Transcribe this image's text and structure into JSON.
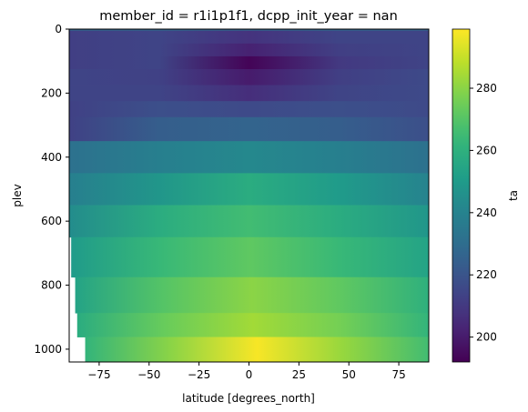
{
  "chart_data": {
    "type": "heatmap",
    "title": "member_id = r1i1p1f1, dcpp_init_year = nan",
    "xlabel": "latitude [degrees_north]",
    "ylabel": "plev",
    "colorbar_label": "ta",
    "colormap": "viridis",
    "xlim": [
      -90,
      90
    ],
    "ylim": [
      1040,
      0
    ],
    "clim": [
      192,
      299
    ],
    "x_ticks": [
      -75,
      -50,
      -25,
      0,
      25,
      50,
      75
    ],
    "x_tick_labels": [
      "−75",
      "−50",
      "−25",
      "0",
      "25",
      "50",
      "75"
    ],
    "y_ticks": [
      0,
      200,
      400,
      600,
      800,
      1000
    ],
    "y_tick_labels": [
      "0",
      "200",
      "400",
      "600",
      "800",
      "1000"
    ],
    "colorbar_ticks": [
      200,
      220,
      240,
      260,
      280
    ],
    "colorbar_tick_labels": [
      "200",
      "220",
      "240",
      "260",
      "280"
    ],
    "levels": [
      {
        "p_top": 0,
        "p_bot": 5,
        "cold_edge": -90,
        "T": [
          226,
          226,
          226,
          226,
          226
        ]
      },
      {
        "p_top": 5,
        "p_bot": 45,
        "cold_edge": -90,
        "T": [
          212,
          214,
          208,
          214,
          214
        ]
      },
      {
        "p_top": 45,
        "p_bot": 85,
        "cold_edge": -90,
        "T": [
          212,
          214,
          202,
          212,
          214
        ]
      },
      {
        "p_top": 85,
        "p_bot": 125,
        "cold_edge": -90,
        "T": [
          212,
          214,
          193,
          210,
          214
        ]
      },
      {
        "p_top": 125,
        "p_bot": 175,
        "cold_edge": -90,
        "T": [
          214,
          213,
          200,
          212,
          216
        ]
      },
      {
        "p_top": 175,
        "p_bot": 225,
        "cold_edge": -90,
        "T": [
          214,
          214,
          206,
          214,
          216
        ]
      },
      {
        "p_top": 225,
        "p_bot": 275,
        "cold_edge": -90,
        "T": [
          213,
          218,
          216,
          218,
          216
        ]
      },
      {
        "p_top": 275,
        "p_bot": 350,
        "cold_edge": -90,
        "T": [
          213,
          224,
          226,
          224,
          218
        ]
      },
      {
        "p_top": 350,
        "p_bot": 450,
        "cold_edge": -90,
        "T": [
          232,
          238,
          242,
          238,
          232
        ]
      },
      {
        "p_top": 450,
        "p_bot": 550,
        "cold_edge": -90,
        "T": [
          238,
          248,
          258,
          250,
          240
        ]
      },
      {
        "p_top": 550,
        "p_bot": 650,
        "cold_edge": -90,
        "T": [
          244,
          258,
          266,
          258,
          248
        ]
      },
      {
        "p_top": 650,
        "p_bot": 775,
        "cold_edge": -89,
        "T": [
          250,
          264,
          272,
          264,
          254
        ]
      },
      {
        "p_top": 775,
        "p_bot": 887,
        "cold_edge": -87,
        "T": [
          254,
          270,
          280,
          272,
          260
        ]
      },
      {
        "p_top": 887,
        "p_bot": 962,
        "cold_edge": -86,
        "T": [
          258,
          274,
          284,
          276,
          262
        ]
      },
      {
        "p_top": 962,
        "p_bot": 1040,
        "cold_edge": -82,
        "T": [
          262,
          280,
          298,
          282,
          266
        ]
      }
    ]
  }
}
